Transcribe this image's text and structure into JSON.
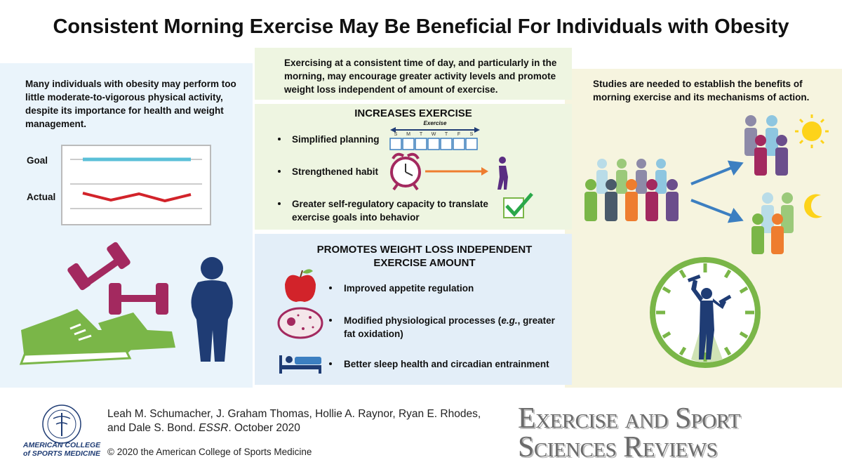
{
  "title": "Consistent Morning Exercise May Be Beneficial For Individuals with Obesity",
  "left_panel": {
    "text": "Many individuals with obesity may perform too little moderate-to-vigorous physical activity, despite its importance for health and weight management.",
    "goal_label": "Goal",
    "actual_label": "Actual"
  },
  "intro": "Exercising at a consistent time of day, and particularly in the morning, may encourage greater activity levels and promote weight loss independent of amount of exercise.",
  "increases_exercise": {
    "heading": "INCREASES EXERCISE",
    "calendar_label": "Exercise",
    "days": [
      "S",
      "M",
      "T",
      "W",
      "T",
      "F",
      "S"
    ],
    "items": [
      "Simplified planning",
      "Strengthened habit",
      "Greater self-regulatory capacity to translate exercise goals into behavior"
    ]
  },
  "weight_loss": {
    "heading": "PROMOTES WEIGHT LOSS INDEPENDENT EXERCISE AMOUNT",
    "items": [
      {
        "text": "Improved appetite regulation"
      },
      {
        "before": "Modified physiological processes (",
        "italic": "e.g.",
        "after": ", greater fat oxidation)"
      },
      {
        "text": "Better sleep health and circadian entrainment"
      }
    ]
  },
  "right_panel": {
    "text": "Studies are needed to establish the benefits of morning exercise and its mechanisms of action."
  },
  "footer": {
    "logo": [
      "AMERICAN COLLEGE",
      "of SPORTS MEDICINE"
    ],
    "citation_line1": "Leah M. Schumacher, J. Graham Thomas, Hollie A. Raynor, Ryan E. Rhodes,",
    "citation_line2_before": "and Dale S. Bond. ",
    "citation_journal": "ESSR",
    "citation_line2_after": ". October 2020",
    "copyright": "© 2020 the American College of Sports Medicine",
    "journal_title": [
      "Exercise and Sport",
      "Sciences Reviews"
    ]
  }
}
